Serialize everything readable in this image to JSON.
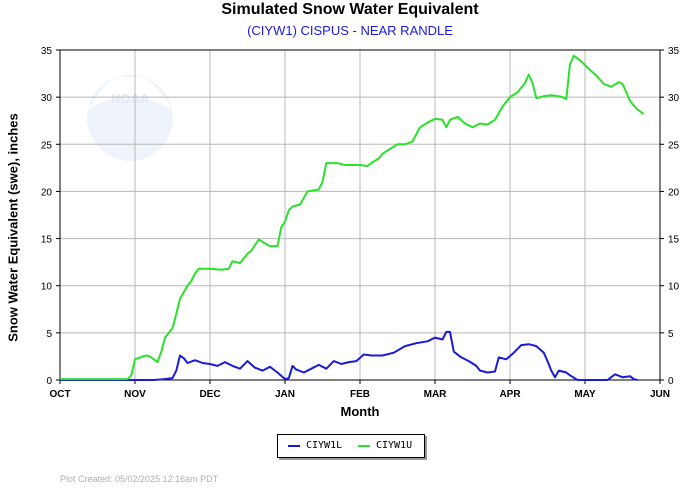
{
  "title": "Simulated Snow Water Equivalent",
  "subtitle": "(CIYW1) CISPUS - NEAR RANDLE",
  "footer": "Plot Created: 05/02/2025 12:16am PDT",
  "watermark_text": "NOAA",
  "colors": {
    "CIYW1L": "#1a1ad9",
    "CIYW1U": "#2ae22a",
    "grid": "#b8b8b8"
  },
  "chart_data": {
    "type": "line",
    "xlabel": "Month",
    "ylabel": "Snow Water Equivalent (swe),  inches",
    "categories": [
      "OCT",
      "NOV",
      "DEC",
      "JAN",
      "FEB",
      "MAR",
      "APR",
      "MAY",
      "JUN"
    ],
    "x_unit": "months since Oct 1",
    "xlim": [
      0,
      8
    ],
    "ylim": [
      0,
      35
    ],
    "yticks": [
      0,
      5,
      10,
      15,
      20,
      25,
      30,
      35
    ],
    "grid": true,
    "legend_position": "bottom-center",
    "series": [
      {
        "name": "CIYW1L",
        "color": "#1a1ad9",
        "points": [
          [
            0.0,
            0.0
          ],
          [
            0.9,
            0.0
          ],
          [
            1.1,
            0.0
          ],
          [
            1.25,
            0.0
          ],
          [
            1.4,
            0.1
          ],
          [
            1.5,
            0.2
          ],
          [
            1.55,
            1.0
          ],
          [
            1.6,
            2.6
          ],
          [
            1.65,
            2.3
          ],
          [
            1.7,
            1.8
          ],
          [
            1.8,
            2.1
          ],
          [
            1.9,
            1.8
          ],
          [
            2.0,
            1.7
          ],
          [
            2.1,
            1.5
          ],
          [
            2.2,
            1.9
          ],
          [
            2.3,
            1.5
          ],
          [
            2.4,
            1.2
          ],
          [
            2.5,
            2.0
          ],
          [
            2.6,
            1.3
          ],
          [
            2.7,
            1.0
          ],
          [
            2.8,
            1.4
          ],
          [
            2.9,
            0.8
          ],
          [
            3.0,
            0.1
          ],
          [
            3.05,
            0.2
          ],
          [
            3.1,
            1.5
          ],
          [
            3.15,
            1.1
          ],
          [
            3.25,
            0.8
          ],
          [
            3.35,
            1.2
          ],
          [
            3.45,
            1.6
          ],
          [
            3.55,
            1.2
          ],
          [
            3.65,
            2.0
          ],
          [
            3.75,
            1.7
          ],
          [
            3.85,
            1.9
          ],
          [
            3.95,
            2.0
          ],
          [
            4.05,
            2.7
          ],
          [
            4.15,
            2.6
          ],
          [
            4.3,
            2.6
          ],
          [
            4.45,
            2.9
          ],
          [
            4.6,
            3.6
          ],
          [
            4.75,
            3.9
          ],
          [
            4.9,
            4.1
          ],
          [
            5.0,
            4.5
          ],
          [
            5.1,
            4.3
          ],
          [
            5.15,
            5.1
          ],
          [
            5.2,
            5.1
          ],
          [
            5.25,
            3.0
          ],
          [
            5.35,
            2.4
          ],
          [
            5.45,
            2.0
          ],
          [
            5.55,
            1.5
          ],
          [
            5.6,
            1.0
          ],
          [
            5.7,
            0.8
          ],
          [
            5.8,
            0.9
          ],
          [
            5.85,
            2.4
          ],
          [
            5.95,
            2.2
          ],
          [
            6.05,
            2.9
          ],
          [
            6.15,
            3.7
          ],
          [
            6.25,
            3.8
          ],
          [
            6.35,
            3.6
          ],
          [
            6.45,
            2.9
          ],
          [
            6.5,
            2.0
          ],
          [
            6.55,
            1.0
          ],
          [
            6.6,
            0.3
          ],
          [
            6.65,
            1.0
          ],
          [
            6.75,
            0.8
          ],
          [
            6.8,
            0.5
          ],
          [
            6.9,
            0.0
          ],
          [
            7.1,
            0.0
          ],
          [
            7.3,
            0.0
          ],
          [
            7.4,
            0.6
          ],
          [
            7.5,
            0.3
          ],
          [
            7.6,
            0.4
          ],
          [
            7.65,
            0.1
          ],
          [
            7.7,
            0.0
          ]
        ]
      },
      {
        "name": "CIYW1U",
        "color": "#2ae22a",
        "points": [
          [
            0.0,
            0.1
          ],
          [
            0.5,
            0.1
          ],
          [
            0.9,
            0.1
          ],
          [
            0.95,
            0.5
          ],
          [
            1.0,
            2.2
          ],
          [
            1.1,
            2.5
          ],
          [
            1.15,
            2.6
          ],
          [
            1.2,
            2.5
          ],
          [
            1.25,
            2.2
          ],
          [
            1.3,
            1.9
          ],
          [
            1.35,
            3.0
          ],
          [
            1.4,
            4.5
          ],
          [
            1.45,
            5.0
          ],
          [
            1.5,
            5.5
          ],
          [
            1.55,
            7.0
          ],
          [
            1.6,
            8.6
          ],
          [
            1.65,
            9.3
          ],
          [
            1.7,
            10.0
          ],
          [
            1.75,
            10.5
          ],
          [
            1.8,
            11.3
          ],
          [
            1.85,
            11.8
          ],
          [
            2.0,
            11.8
          ],
          [
            2.15,
            11.7
          ],
          [
            2.25,
            11.8
          ],
          [
            2.3,
            12.6
          ],
          [
            2.4,
            12.4
          ],
          [
            2.5,
            13.4
          ],
          [
            2.55,
            13.7
          ],
          [
            2.6,
            14.3
          ],
          [
            2.65,
            14.9
          ],
          [
            2.75,
            14.4
          ],
          [
            2.8,
            14.2
          ],
          [
            2.9,
            14.2
          ],
          [
            2.95,
            16.2
          ],
          [
            3.0,
            16.8
          ],
          [
            3.05,
            18.0
          ],
          [
            3.1,
            18.4
          ],
          [
            3.2,
            18.6
          ],
          [
            3.3,
            20.0
          ],
          [
            3.45,
            20.2
          ],
          [
            3.5,
            21.0
          ],
          [
            3.55,
            23.0
          ],
          [
            3.7,
            23.0
          ],
          [
            3.8,
            22.8
          ],
          [
            4.0,
            22.8
          ],
          [
            4.1,
            22.7
          ],
          [
            4.15,
            23.0
          ],
          [
            4.25,
            23.5
          ],
          [
            4.3,
            24.0
          ],
          [
            4.4,
            24.5
          ],
          [
            4.5,
            25.0
          ],
          [
            4.6,
            25.0
          ],
          [
            4.7,
            25.3
          ],
          [
            4.8,
            26.8
          ],
          [
            4.9,
            27.3
          ],
          [
            5.0,
            27.7
          ],
          [
            5.1,
            27.6
          ],
          [
            5.15,
            26.8
          ],
          [
            5.2,
            27.6
          ],
          [
            5.3,
            27.9
          ],
          [
            5.4,
            27.2
          ],
          [
            5.5,
            26.8
          ],
          [
            5.6,
            27.2
          ],
          [
            5.7,
            27.1
          ],
          [
            5.8,
            27.6
          ],
          [
            5.9,
            29.0
          ],
          [
            6.0,
            30.0
          ],
          [
            6.1,
            30.5
          ],
          [
            6.2,
            31.5
          ],
          [
            6.25,
            32.4
          ],
          [
            6.3,
            31.5
          ],
          [
            6.35,
            29.9
          ],
          [
            6.45,
            30.1
          ],
          [
            6.55,
            30.2
          ],
          [
            6.65,
            30.1
          ],
          [
            6.7,
            30.0
          ],
          [
            6.75,
            29.8
          ],
          [
            6.8,
            33.5
          ],
          [
            6.85,
            34.4
          ],
          [
            6.95,
            33.8
          ],
          [
            7.05,
            33.0
          ],
          [
            7.15,
            32.3
          ],
          [
            7.25,
            31.4
          ],
          [
            7.35,
            31.1
          ],
          [
            7.45,
            31.6
          ],
          [
            7.5,
            31.4
          ],
          [
            7.55,
            30.5
          ],
          [
            7.6,
            29.6
          ],
          [
            7.65,
            29.1
          ],
          [
            7.7,
            28.7
          ],
          [
            7.75,
            28.4
          ],
          [
            7.78,
            28.2
          ]
        ]
      }
    ]
  }
}
